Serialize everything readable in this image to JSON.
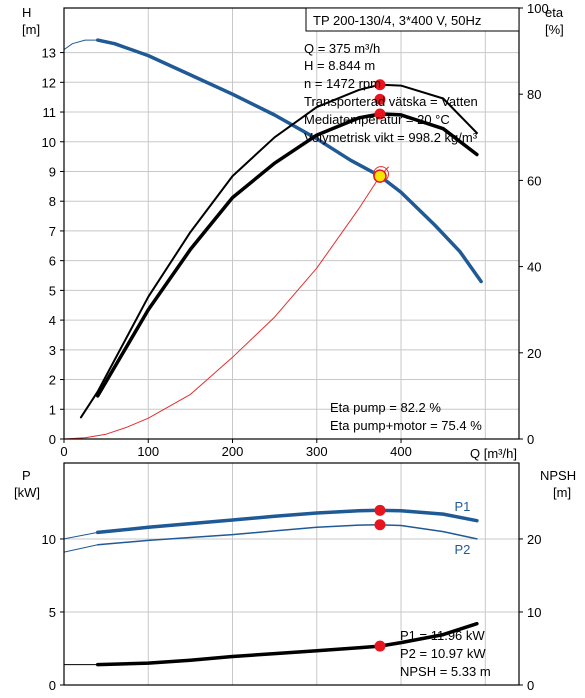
{
  "header": {
    "model": "TP 200-130/4, 3*400 V, 50Hz"
  },
  "top_info": [
    "Q = 375 m³/h",
    "H = 8.844 m",
    "n = 1472 rpm",
    "Transporterad vätska = Vatten",
    "Mediatemperatur = 20 °C",
    "Volymetrisk vikt = 998.2 kg/m³"
  ],
  "eta_info": [
    "Eta pump = 82.2 %",
    "Eta pump+motor = 75.4 %"
  ],
  "bottom_info": [
    "P1 = 11.96 kW",
    "P2 = 10.97 kW",
    "NPSH = 5.33 m"
  ],
  "colors": {
    "head": "#1f5a96",
    "system": "#e03030",
    "eta": "#000000",
    "power": "#1f5a96",
    "npsh": "#000000",
    "marker": "#e8141e",
    "op_point": "#f5e600",
    "grid": "#c8c8c8"
  },
  "chart_data": [
    {
      "type": "line",
      "name": "top",
      "xlabel": "Q [m³/h]",
      "xlim": [
        0,
        540
      ],
      "xticks": [
        "0",
        "100",
        "200",
        "300",
        "400"
      ],
      "y_left": {
        "label_top": "H",
        "label_unit": "[m]",
        "ylim": [
          0,
          14.5
        ],
        "ticks": [
          "0",
          "1",
          "2",
          "3",
          "4",
          "5",
          "6",
          "7",
          "8",
          "9",
          "10",
          "11",
          "12",
          "13"
        ]
      },
      "y_right": {
        "label_top": "eta",
        "label_unit": "[%]",
        "ylim": [
          0,
          100
        ],
        "ticks": [
          "0",
          "20",
          "40",
          "60",
          "80",
          "100"
        ]
      },
      "series": [
        {
          "role": "head",
          "axis": "left",
          "width": 3.5,
          "x": [
            40,
            60,
            100,
            150,
            200,
            250,
            300,
            340,
            375,
            400,
            440,
            470,
            495
          ],
          "y": [
            13.42,
            13.3,
            12.9,
            12.25,
            11.6,
            10.9,
            10.1,
            9.38,
            8.844,
            8.3,
            7.2,
            6.3,
            5.3
          ]
        },
        {
          "role": "head-extension",
          "axis": "left",
          "width": 1,
          "x": [
            0,
            10,
            25,
            40
          ],
          "y": [
            13.1,
            13.3,
            13.42,
            13.42
          ]
        },
        {
          "role": "system",
          "axis": "left",
          "width": 1,
          "x": [
            0,
            25,
            50,
            75,
            100,
            150,
            200,
            250,
            300,
            350,
            375,
            385
          ],
          "y": [
            0,
            0.04,
            0.16,
            0.4,
            0.7,
            1.5,
            2.75,
            4.1,
            5.75,
            7.75,
            8.844,
            9.15
          ]
        },
        {
          "role": "eta-pump",
          "axis": "right",
          "width": 2,
          "x": [
            20,
            40,
            100,
            150,
            200,
            250,
            300,
            350,
            375,
            400,
            450,
            490
          ],
          "y": [
            5,
            11,
            33,
            48,
            61,
            70,
            77,
            81,
            82.2,
            82,
            79,
            71
          ]
        },
        {
          "role": "eta-total",
          "axis": "right",
          "width": 3.5,
          "x": [
            40,
            100,
            150,
            200,
            250,
            300,
            350,
            375,
            400,
            450,
            490
          ],
          "y": [
            10,
            30,
            44,
            56,
            64,
            70.5,
            74.5,
            75.4,
            75.2,
            72,
            66
          ]
        }
      ],
      "markers": [
        {
          "axis": "left",
          "x": 375,
          "y": 8.844,
          "kind": "operating-point"
        },
        {
          "axis": "right",
          "x": 375,
          "y": 82.2,
          "kind": "dot"
        },
        {
          "axis": "right",
          "x": 375,
          "y": 78.8,
          "kind": "dot"
        },
        {
          "axis": "right",
          "x": 375,
          "y": 75.4,
          "kind": "dot"
        }
      ]
    },
    {
      "type": "line",
      "name": "bottom",
      "xlim": [
        0,
        540
      ],
      "y_left": {
        "label_top": "P",
        "label_unit": "[kW]",
        "ylim": [
          0,
          15.2
        ],
        "ticks": [
          "0",
          "5",
          "10"
        ]
      },
      "y_right": {
        "label_top": "NPSH",
        "label_unit": "[m]",
        "ylim": [
          0,
          30.4
        ],
        "ticks": [
          "0",
          "10",
          "20"
        ]
      },
      "series": [
        {
          "name": "P1",
          "role": "power",
          "axis": "left",
          "width": 3.5,
          "x": [
            40,
            100,
            150,
            200,
            250,
            300,
            350,
            375,
            400,
            450,
            490
          ],
          "y": [
            10.45,
            10.8,
            11.05,
            11.3,
            11.55,
            11.78,
            11.93,
            11.96,
            11.93,
            11.7,
            11.25
          ]
        },
        {
          "role": "power-extension",
          "axis": "left",
          "width": 1,
          "x": [
            0,
            40
          ],
          "y": [
            10.0,
            10.45
          ]
        },
        {
          "name": "P2",
          "role": "power",
          "axis": "left",
          "width": 1.5,
          "x": [
            40,
            100,
            150,
            200,
            250,
            300,
            350,
            375,
            400,
            450,
            490
          ],
          "y": [
            9.6,
            9.9,
            10.1,
            10.3,
            10.55,
            10.8,
            10.95,
            10.97,
            10.92,
            10.5,
            10.0
          ]
        },
        {
          "role": "power-extension",
          "axis": "left",
          "width": 1,
          "x": [
            0,
            40
          ],
          "y": [
            9.1,
            9.6
          ]
        },
        {
          "role": "npsh",
          "axis": "right",
          "width": 3.5,
          "x": [
            40,
            100,
            150,
            200,
            250,
            300,
            350,
            375,
            400,
            450,
            490
          ],
          "y": [
            2.8,
            3.0,
            3.4,
            3.9,
            4.3,
            4.7,
            5.1,
            5.33,
            5.8,
            6.9,
            8.4
          ]
        },
        {
          "role": "npsh-extension",
          "axis": "right",
          "width": 1,
          "x": [
            0,
            40
          ],
          "y": [
            2.8,
            2.8
          ]
        }
      ],
      "series_labels": [
        {
          "text": "P1",
          "axis": "left",
          "x": 480,
          "y": 12.25
        },
        {
          "text": "P2",
          "axis": "left",
          "x": 480,
          "y": 9.3
        }
      ],
      "markers": [
        {
          "axis": "left",
          "x": 375,
          "y": 11.96,
          "kind": "dot"
        },
        {
          "axis": "left",
          "x": 375,
          "y": 10.97,
          "kind": "dot"
        },
        {
          "axis": "right",
          "x": 375,
          "y": 5.33,
          "kind": "dot"
        }
      ]
    }
  ]
}
